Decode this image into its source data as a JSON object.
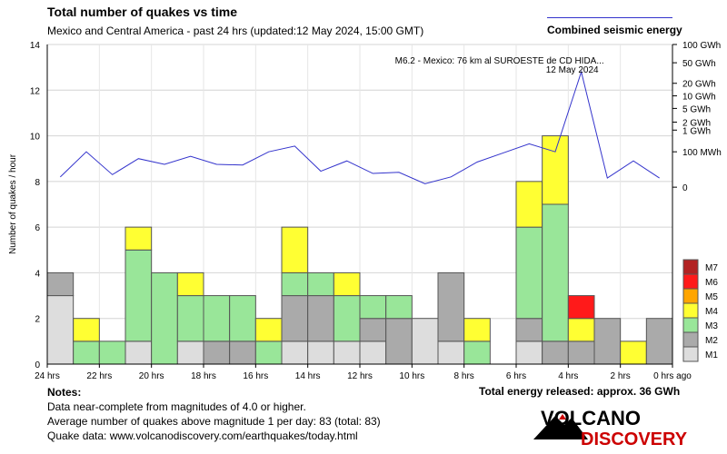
{
  "chart_data": {
    "type": "bar",
    "title": "Total number of quakes vs time",
    "subtitle": "Mexico and Central America - past 24 hrs (updated:12 May 2024, 15:00 GMT)",
    "ylabel": "Number of quakes / hour",
    "ylim": [
      0,
      14
    ],
    "y_ticks": [
      0,
      2,
      4,
      6,
      8,
      10,
      12,
      14
    ],
    "x_tick_labels": [
      "24 hrs",
      "22 hrs",
      "20 hrs",
      "18 hrs",
      "16 hrs",
      "14 hrs",
      "12 hrs",
      "10 hrs",
      "8 hrs",
      "6 hrs",
      "4 hrs",
      "2 hrs",
      "0 hrs ago"
    ],
    "bars": [
      {
        "hours_ago": 24,
        "M1": 3,
        "M2": 1,
        "M3": 0,
        "M4": 0,
        "M5": 0,
        "M6": 0,
        "M7": 0
      },
      {
        "hours_ago": 23,
        "M1": 0,
        "M2": 0,
        "M3": 1,
        "M4": 1,
        "M5": 0,
        "M6": 0,
        "M7": 0
      },
      {
        "hours_ago": 22,
        "M1": 0,
        "M2": 0,
        "M3": 1,
        "M4": 0,
        "M5": 0,
        "M6": 0,
        "M7": 0
      },
      {
        "hours_ago": 21,
        "M1": 1,
        "M2": 0,
        "M3": 4,
        "M4": 1,
        "M5": 0,
        "M6": 0,
        "M7": 0
      },
      {
        "hours_ago": 20,
        "M1": 0,
        "M2": 0,
        "M3": 4,
        "M4": 0,
        "M5": 0,
        "M6": 0,
        "M7": 0
      },
      {
        "hours_ago": 19,
        "M1": 1,
        "M2": 0,
        "M3": 2,
        "M4": 1,
        "M5": 0,
        "M6": 0,
        "M7": 0
      },
      {
        "hours_ago": 18,
        "M1": 0,
        "M2": 1,
        "M3": 2,
        "M4": 0,
        "M5": 0,
        "M6": 0,
        "M7": 0
      },
      {
        "hours_ago": 17,
        "M1": 0,
        "M2": 1,
        "M3": 2,
        "M4": 0,
        "M5": 0,
        "M6": 0,
        "M7": 0
      },
      {
        "hours_ago": 16,
        "M1": 0,
        "M2": 0,
        "M3": 1,
        "M4": 1,
        "M5": 0,
        "M6": 0,
        "M7": 0
      },
      {
        "hours_ago": 15,
        "M1": 1,
        "M2": 2,
        "M3": 1,
        "M4": 2,
        "M5": 0,
        "M6": 0,
        "M7": 0
      },
      {
        "hours_ago": 14,
        "M1": 1,
        "M2": 2,
        "M3": 1,
        "M4": 0,
        "M5": 0,
        "M6": 0,
        "M7": 0
      },
      {
        "hours_ago": 13,
        "M1": 1,
        "M2": 0,
        "M3": 2,
        "M4": 1,
        "M5": 0,
        "M6": 0,
        "M7": 0
      },
      {
        "hours_ago": 12,
        "M1": 1,
        "M2": 1,
        "M3": 1,
        "M4": 0,
        "M5": 0,
        "M6": 0,
        "M7": 0
      },
      {
        "hours_ago": 11,
        "M1": 0,
        "M2": 2,
        "M3": 1,
        "M4": 0,
        "M5": 0,
        "M6": 0,
        "M7": 0
      },
      {
        "hours_ago": 10,
        "M1": 2,
        "M2": 0,
        "M3": 0,
        "M4": 0,
        "M5": 0,
        "M6": 0,
        "M7": 0
      },
      {
        "hours_ago": 9,
        "M1": 1,
        "M2": 3,
        "M3": 0,
        "M4": 0,
        "M5": 0,
        "M6": 0,
        "M7": 0
      },
      {
        "hours_ago": 8,
        "M1": 0,
        "M2": 0,
        "M3": 1,
        "M4": 1,
        "M5": 0,
        "M6": 0,
        "M7": 0
      },
      {
        "hours_ago": 7,
        "M1": 0,
        "M2": 0,
        "M3": 0,
        "M4": 0,
        "M5": 0,
        "M6": 0,
        "M7": 0
      },
      {
        "hours_ago": 6,
        "M1": 1,
        "M2": 1,
        "M3": 4,
        "M4": 2,
        "M5": 0,
        "M6": 0,
        "M7": 0
      },
      {
        "hours_ago": 5,
        "M1": 0,
        "M2": 1,
        "M3": 6,
        "M4": 3,
        "M5": 0,
        "M6": 0,
        "M7": 0
      },
      {
        "hours_ago": 4,
        "M1": 0,
        "M2": 1,
        "M3": 0,
        "M4": 1,
        "M5": 0,
        "M6": 1,
        "M7": 0
      },
      {
        "hours_ago": 3,
        "M1": 0,
        "M2": 2,
        "M3": 0,
        "M4": 0,
        "M5": 0,
        "M6": 0,
        "M7": 0
      },
      {
        "hours_ago": 2,
        "M1": 0,
        "M2": 0,
        "M3": 0,
        "M4": 1,
        "M5": 0,
        "M6": 0,
        "M7": 0
      },
      {
        "hours_ago": 1,
        "M1": 0,
        "M2": 2,
        "M3": 0,
        "M4": 0,
        "M5": 0,
        "M6": 0,
        "M7": 0
      }
    ],
    "magnitude_legend": [
      {
        "label": "M7",
        "color": "#b22222"
      },
      {
        "label": "M6",
        "color": "#ff1a1a"
      },
      {
        "label": "M5",
        "color": "#ffa500"
      },
      {
        "label": "M4",
        "color": "#ffff33"
      },
      {
        "label": "M3",
        "color": "#99e699"
      },
      {
        "label": "M2",
        "color": "#aaaaaa"
      },
      {
        "label": "M1",
        "color": "#dddddd"
      }
    ],
    "energy_series": {
      "name": "Combined seismic energy",
      "color": "#3333cc",
      "hours_ago": [
        23.5,
        22.5,
        21.5,
        20.5,
        19.5,
        18.5,
        17.5,
        16.5,
        15.5,
        14.5,
        13.5,
        12.5,
        11.5,
        10.5,
        9.5,
        8.5,
        7.5,
        6.5,
        5.5,
        4.5,
        3.5,
        2.5,
        1.5,
        0.5
      ],
      "y_position": [
        8.2,
        9.3,
        8.3,
        9.0,
        8.75,
        9.1,
        8.75,
        8.72,
        9.3,
        9.55,
        8.45,
        8.9,
        8.35,
        8.4,
        7.9,
        8.2,
        8.85,
        9.25,
        9.65,
        9.3,
        12.8,
        8.15,
        8.9,
        8.15
      ],
      "axis_labels": [
        {
          "label": "100 GWh",
          "y": 14.0
        },
        {
          "label": "50 GWh",
          "y": 13.2
        },
        {
          "label": "20 GWh",
          "y": 12.3
        },
        {
          "label": "10 GWh",
          "y": 11.75
        },
        {
          "label": "5 GWh",
          "y": 11.2
        },
        {
          "label": "2 GWh",
          "y": 10.6
        },
        {
          "label": "1 GWh",
          "y": 10.25
        },
        {
          "label": "100 MWh",
          "y": 9.3
        },
        {
          "label": "0",
          "y": 7.75
        }
      ]
    },
    "annotation": {
      "text": "M6.2 - Mexico: 76 km al SUROESTE de CD HIDA...",
      "date": "12 May 2024",
      "hours_ago": 3.5,
      "y": 12.8
    }
  },
  "legend_energy_label": "Combined seismic energy",
  "total_energy": "Total energy released: approx. 36 GWh",
  "notes": {
    "heading": "Notes:",
    "line1": "Data near-complete from magnitudes of 4.0 or higher.",
    "line2": "Average number of quakes above magnitude 1 per day: 83 (total: 83)",
    "line3": "Quake data: www.volcanodiscovery.com/earthquakes/today.html"
  },
  "logo": {
    "line1": "VOLCANO",
    "line2": "DISCOVERY"
  }
}
